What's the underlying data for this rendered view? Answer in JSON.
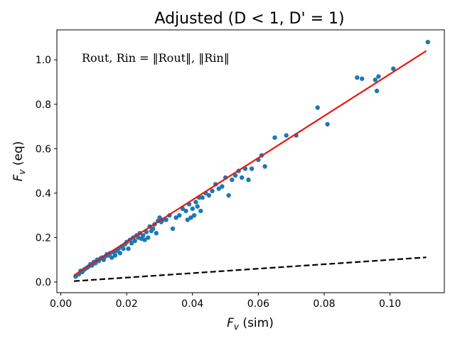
{
  "chart_data": {
    "type": "scatter",
    "title": "Adjusted (D < 1, D' = 1)",
    "xlabel": "F_v (sim)",
    "ylabel": "F_v (eq)",
    "xlabel_main": "F",
    "xlabel_sub": "v",
    "xlabel_rest": " (sim)",
    "ylabel_main": "F",
    "ylabel_sub": "v",
    "ylabel_rest": " (eq)",
    "annotation": "Rout, Rin = ‖Rout‖, ‖Rin‖",
    "xlim": [
      -0.0012,
      0.1165
    ],
    "ylim": [
      -0.048,
      1.135
    ],
    "xticks": [
      0.0,
      0.02,
      0.04,
      0.06,
      0.08,
      0.1
    ],
    "xtick_labels": [
      "0.00",
      "0.02",
      "0.04",
      "0.06",
      "0.08",
      "0.10"
    ],
    "yticks": [
      0.0,
      0.2,
      0.4,
      0.6,
      0.8,
      1.0
    ],
    "ytick_labels": [
      "0.0",
      "0.2",
      "0.4",
      "0.6",
      "0.8",
      "1.0"
    ],
    "grid": false,
    "colors": {
      "points": "#1f77b4",
      "fit": "#e8170f",
      "reference": "#000000"
    },
    "series": [
      {
        "type": "scatter",
        "x": [
          0.0045,
          0.0055,
          0.006,
          0.0065,
          0.007,
          0.0075,
          0.008,
          0.0085,
          0.009,
          0.0095,
          0.01,
          0.0105,
          0.011,
          0.0115,
          0.012,
          0.0125,
          0.013,
          0.0135,
          0.014,
          0.0145,
          0.015,
          0.0155,
          0.016,
          0.0165,
          0.017,
          0.0175,
          0.018,
          0.0185,
          0.019,
          0.0195,
          0.02,
          0.0205,
          0.021,
          0.0215,
          0.022,
          0.0225,
          0.023,
          0.0235,
          0.024,
          0.0245,
          0.025,
          0.0255,
          0.026,
          0.0265,
          0.027,
          0.0275,
          0.028,
          0.0285,
          0.029,
          0.0295,
          0.03,
          0.0305,
          0.031,
          0.032,
          0.033,
          0.034,
          0.035,
          0.036,
          0.037,
          0.038,
          0.0385,
          0.039,
          0.0395,
          0.04,
          0.0405,
          0.041,
          0.0415,
          0.042,
          0.0425,
          0.043,
          0.044,
          0.045,
          0.046,
          0.047,
          0.048,
          0.049,
          0.05,
          0.051,
          0.052,
          0.053,
          0.054,
          0.055,
          0.056,
          0.057,
          0.058,
          0.06,
          0.061,
          0.062,
          0.065,
          0.0685,
          0.0715,
          0.078,
          0.081,
          0.09,
          0.0915,
          0.0955,
          0.096,
          0.0965,
          0.101,
          0.1115
        ],
        "y": [
          0.025,
          0.035,
          0.05,
          0.045,
          0.055,
          0.06,
          0.065,
          0.07,
          0.08,
          0.075,
          0.09,
          0.085,
          0.1,
          0.095,
          0.105,
          0.11,
          0.1,
          0.115,
          0.125,
          0.12,
          0.13,
          0.11,
          0.135,
          0.12,
          0.14,
          0.15,
          0.13,
          0.16,
          0.15,
          0.17,
          0.18,
          0.15,
          0.19,
          0.175,
          0.2,
          0.185,
          0.21,
          0.2,
          0.22,
          0.195,
          0.21,
          0.19,
          0.225,
          0.2,
          0.25,
          0.23,
          0.24,
          0.26,
          0.22,
          0.275,
          0.29,
          0.27,
          0.28,
          0.28,
          0.3,
          0.24,
          0.29,
          0.3,
          0.33,
          0.32,
          0.28,
          0.35,
          0.29,
          0.33,
          0.3,
          0.36,
          0.34,
          0.38,
          0.32,
          0.38,
          0.4,
          0.39,
          0.41,
          0.44,
          0.42,
          0.43,
          0.47,
          0.39,
          0.46,
          0.48,
          0.5,
          0.47,
          0.51,
          0.46,
          0.51,
          0.55,
          0.57,
          0.52,
          0.65,
          0.66,
          0.66,
          0.785,
          0.71,
          0.92,
          0.915,
          0.91,
          0.86,
          0.925,
          0.96,
          1.08
        ]
      },
      {
        "type": "fit-line",
        "x": [
          0.004,
          0.111
        ],
        "y": [
          0.03,
          1.04
        ]
      },
      {
        "type": "reference-line",
        "x": [
          0.004,
          0.111
        ],
        "y": [
          0.004,
          0.111
        ]
      }
    ]
  }
}
